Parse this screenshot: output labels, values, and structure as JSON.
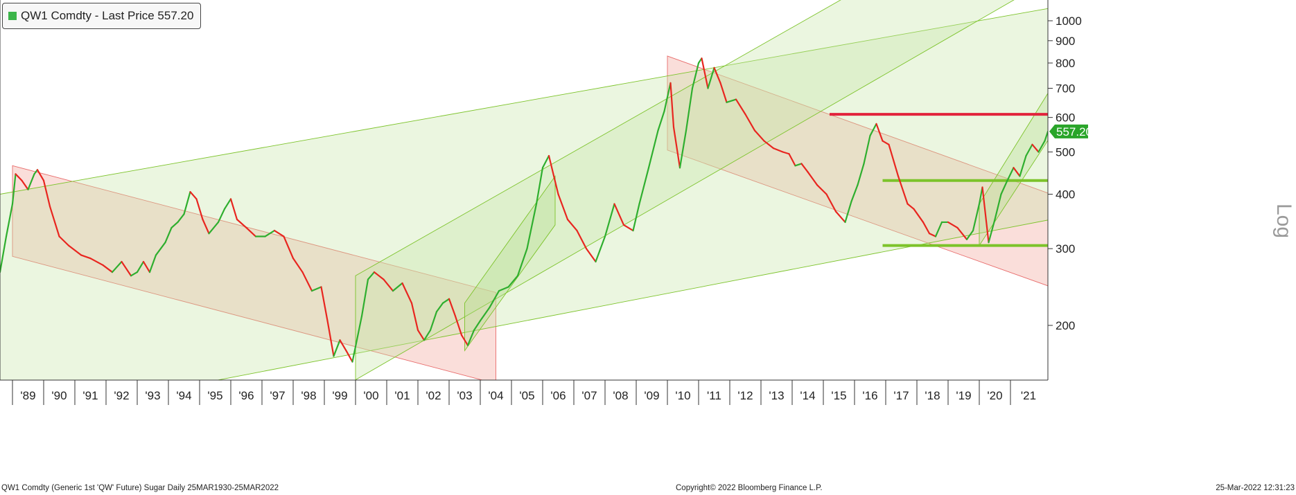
{
  "legend": {
    "label": "QW1 Comdty - Last Price 557.20",
    "swatch_color": "#3cb54a"
  },
  "footer": {
    "left": "QW1 Comdty (Generic 1st 'QW' Future) Sugar  Daily 25MAR1930-25MAR2022",
    "center": "Copyright© 2022 Bloomberg Finance L.P.",
    "right": "25-Mar-2022 12:31:23"
  },
  "scale_label": "Log",
  "chart_data": {
    "type": "line",
    "scale": "log",
    "grid": false,
    "legend_position": "top-left",
    "last_price": 557.2,
    "last_price_label": "557.20",
    "ylim": [
      150,
      1100
    ],
    "xlim": [
      1988.6,
      2022.2
    ],
    "y_ticks": [
      200,
      300,
      400,
      500,
      600,
      700,
      800,
      900,
      1000
    ],
    "x_ticks": [
      {
        "label": "'89",
        "x": 1989.0
      },
      {
        "label": "'90",
        "x": 1990.0
      },
      {
        "label": "'91",
        "x": 1991.0
      },
      {
        "label": "'92",
        "x": 1992.0
      },
      {
        "label": "'93",
        "x": 1993.0
      },
      {
        "label": "'94",
        "x": 1994.0
      },
      {
        "label": "'95",
        "x": 1995.0
      },
      {
        "label": "'96",
        "x": 1996.0
      },
      {
        "label": "'97",
        "x": 1997.0
      },
      {
        "label": "'98",
        "x": 1998.0
      },
      {
        "label": "'99",
        "x": 1999.0
      },
      {
        "label": "'00",
        "x": 2000.0
      },
      {
        "label": "'01",
        "x": 2001.0
      },
      {
        "label": "'02",
        "x": 2002.0
      },
      {
        "label": "'03",
        "x": 2003.0
      },
      {
        "label": "'04",
        "x": 2004.0
      },
      {
        "label": "'05",
        "x": 2005.0
      },
      {
        "label": "'06",
        "x": 2006.0
      },
      {
        "label": "'07",
        "x": 2007.0
      },
      {
        "label": "'08",
        "x": 2008.0
      },
      {
        "label": "'09",
        "x": 2009.0
      },
      {
        "label": "'10",
        "x": 2010.0
      },
      {
        "label": "'11",
        "x": 2011.0
      },
      {
        "label": "'12",
        "x": 2012.0
      },
      {
        "label": "'13",
        "x": 2013.0
      },
      {
        "label": "'14",
        "x": 2014.0
      },
      {
        "label": "'15",
        "x": 2015.0
      },
      {
        "label": "'16",
        "x": 2016.0
      },
      {
        "label": "'17",
        "x": 2017.0
      },
      {
        "label": "'18",
        "x": 2018.0
      },
      {
        "label": "'19",
        "x": 2019.0
      },
      {
        "label": "'20",
        "x": 2020.0
      },
      {
        "label": "'21",
        "x": 2021.0
      }
    ],
    "price_series": [
      [
        1988.6,
        265
      ],
      [
        1988.8,
        320
      ],
      [
        1989.0,
        380
      ],
      [
        1989.1,
        445
      ],
      [
        1989.3,
        430
      ],
      [
        1989.5,
        410
      ],
      [
        1989.7,
        445
      ],
      [
        1989.8,
        455
      ],
      [
        1990.0,
        430
      ],
      [
        1990.2,
        375
      ],
      [
        1990.5,
        320
      ],
      [
        1990.8,
        305
      ],
      [
        1991.2,
        290
      ],
      [
        1991.5,
        285
      ],
      [
        1991.9,
        275
      ],
      [
        1992.2,
        265
      ],
      [
        1992.5,
        280
      ],
      [
        1992.8,
        260
      ],
      [
        1993.0,
        265
      ],
      [
        1993.2,
        280
      ],
      [
        1993.4,
        265
      ],
      [
        1993.6,
        290
      ],
      [
        1993.9,
        310
      ],
      [
        1994.1,
        335
      ],
      [
        1994.3,
        345
      ],
      [
        1994.5,
        360
      ],
      [
        1994.7,
        405
      ],
      [
        1994.9,
        390
      ],
      [
        1995.1,
        350
      ],
      [
        1995.3,
        325
      ],
      [
        1995.6,
        345
      ],
      [
        1995.8,
        370
      ],
      [
        1996.0,
        390
      ],
      [
        1996.2,
        350
      ],
      [
        1996.5,
        335
      ],
      [
        1996.8,
        320
      ],
      [
        1997.1,
        320
      ],
      [
        1997.4,
        330
      ],
      [
        1997.7,
        320
      ],
      [
        1998.0,
        285
      ],
      [
        1998.3,
        265
      ],
      [
        1998.6,
        240
      ],
      [
        1998.9,
        245
      ],
      [
        1999.1,
        205
      ],
      [
        1999.3,
        170
      ],
      [
        1999.5,
        185
      ],
      [
        1999.7,
        175
      ],
      [
        1999.9,
        165
      ],
      [
        2000.2,
        210
      ],
      [
        2000.4,
        255
      ],
      [
        2000.6,
        265
      ],
      [
        2000.9,
        255
      ],
      [
        2001.2,
        240
      ],
      [
        2001.5,
        250
      ],
      [
        2001.8,
        225
      ],
      [
        2002.0,
        195
      ],
      [
        2002.2,
        185
      ],
      [
        2002.4,
        195
      ],
      [
        2002.6,
        215
      ],
      [
        2002.8,
        225
      ],
      [
        2003.0,
        230
      ],
      [
        2003.2,
        210
      ],
      [
        2003.4,
        190
      ],
      [
        2003.6,
        180
      ],
      [
        2003.8,
        195
      ],
      [
        2004.0,
        205
      ],
      [
        2004.3,
        220
      ],
      [
        2004.6,
        240
      ],
      [
        2004.9,
        245
      ],
      [
        2005.2,
        260
      ],
      [
        2005.5,
        300
      ],
      [
        2005.8,
        380
      ],
      [
        2006.0,
        460
      ],
      [
        2006.2,
        490
      ],
      [
        2006.5,
        400
      ],
      [
        2006.8,
        350
      ],
      [
        2007.1,
        330
      ],
      [
        2007.4,
        300
      ],
      [
        2007.7,
        280
      ],
      [
        2008.0,
        320
      ],
      [
        2008.3,
        380
      ],
      [
        2008.6,
        340
      ],
      [
        2008.9,
        330
      ],
      [
        2009.1,
        380
      ],
      [
        2009.4,
        460
      ],
      [
        2009.7,
        560
      ],
      [
        2009.9,
        620
      ],
      [
        2010.1,
        720
      ],
      [
        2010.2,
        570
      ],
      [
        2010.4,
        460
      ],
      [
        2010.6,
        560
      ],
      [
        2010.8,
        700
      ],
      [
        2011.0,
        800
      ],
      [
        2011.1,
        820
      ],
      [
        2011.3,
        700
      ],
      [
        2011.5,
        780
      ],
      [
        2011.7,
        720
      ],
      [
        2011.9,
        650
      ],
      [
        2012.2,
        660
      ],
      [
        2012.5,
        610
      ],
      [
        2012.8,
        560
      ],
      [
        2013.1,
        530
      ],
      [
        2013.4,
        510
      ],
      [
        2013.7,
        500
      ],
      [
        2013.9,
        495
      ],
      [
        2014.1,
        465
      ],
      [
        2014.3,
        470
      ],
      [
        2014.5,
        450
      ],
      [
        2014.8,
        420
      ],
      [
        2015.1,
        400
      ],
      [
        2015.4,
        365
      ],
      [
        2015.7,
        345
      ],
      [
        2015.9,
        385
      ],
      [
        2016.1,
        420
      ],
      [
        2016.3,
        470
      ],
      [
        2016.5,
        545
      ],
      [
        2016.7,
        580
      ],
      [
        2016.9,
        530
      ],
      [
        2017.1,
        520
      ],
      [
        2017.4,
        440
      ],
      [
        2017.7,
        380
      ],
      [
        2017.9,
        370
      ],
      [
        2018.2,
        345
      ],
      [
        2018.4,
        325
      ],
      [
        2018.6,
        320
      ],
      [
        2018.8,
        345
      ],
      [
        2019.0,
        345
      ],
      [
        2019.3,
        335
      ],
      [
        2019.6,
        315
      ],
      [
        2019.8,
        330
      ],
      [
        2020.0,
        380
      ],
      [
        2020.1,
        415
      ],
      [
        2020.3,
        310
      ],
      [
        2020.5,
        350
      ],
      [
        2020.7,
        400
      ],
      [
        2020.9,
        430
      ],
      [
        2021.1,
        460
      ],
      [
        2021.3,
        440
      ],
      [
        2021.5,
        490
      ],
      [
        2021.7,
        520
      ],
      [
        2021.9,
        500
      ],
      [
        2022.1,
        530
      ],
      [
        2022.2,
        557
      ]
    ],
    "horizontal_levels": [
      {
        "value": 610,
        "from": 2015.2,
        "to": 2022.3,
        "color": "#e2233c"
      },
      {
        "value": 430,
        "from": 2016.9,
        "to": 2022.3,
        "color": "#7cc32a"
      },
      {
        "value": 305,
        "from": 2016.9,
        "to": 2022.3,
        "color": "#7cc32a"
      }
    ],
    "channels": [
      {
        "kind": "down",
        "x1": 1989.0,
        "x2": 2004.5,
        "upper": [
          465,
          238
        ],
        "lower": [
          288,
          147
        ],
        "color": "#f3b6ae"
      },
      {
        "kind": "down",
        "x1": 2010.0,
        "x2": 2022.3,
        "upper": [
          830,
          400
        ],
        "lower": [
          505,
          245
        ],
        "color": "#f3b6ae"
      },
      {
        "kind": "up",
        "x1": 1988.6,
        "x2": 2022.3,
        "upper": [
          400,
          1070
        ],
        "lower": [
          120,
          350
        ],
        "color": "#c7e5a6"
      },
      {
        "kind": "up",
        "x1": 2000.0,
        "x2": 2022.3,
        "upper": [
          260,
          2100
        ],
        "lower": [
          150,
          1250
        ],
        "color": "#c7e5a6"
      },
      {
        "kind": "up",
        "x1": 2003.5,
        "x2": 2006.4,
        "upper": [
          225,
          440
        ],
        "lower": [
          175,
          340
        ],
        "color": "#b5dd8c"
      },
      {
        "kind": "up",
        "x1": 2020.0,
        "x2": 2022.3,
        "upper": [
          380,
          700
        ],
        "lower": [
          305,
          545
        ],
        "color": "#b5dd8c"
      }
    ]
  }
}
